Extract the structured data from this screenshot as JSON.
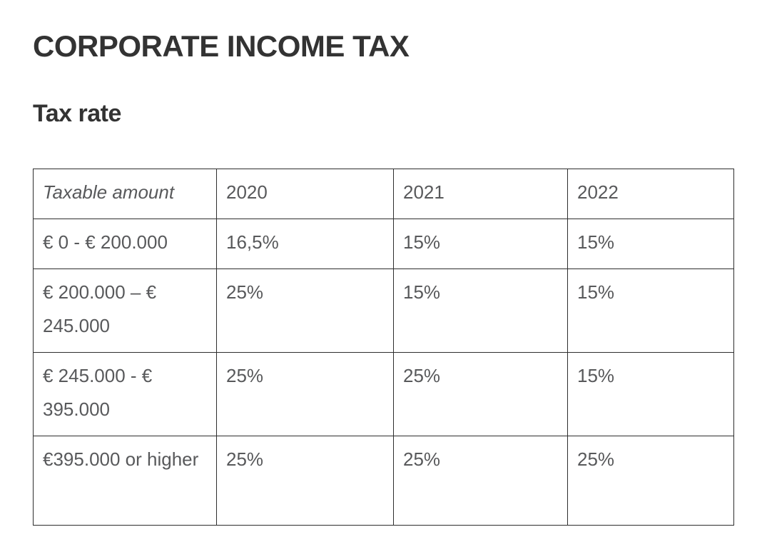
{
  "page": {
    "title": "CORPORATE INCOME TAX",
    "subtitle": "Tax rate"
  },
  "table": {
    "columns": [
      "Taxable amount",
      "2020",
      "2021",
      "2022"
    ],
    "rows": [
      {
        "label": "€ 0 - € 200.000",
        "values": [
          "16,5%",
          "15%",
          "15%"
        ]
      },
      {
        "label": "€ 200.000 – € 245.000",
        "values": [
          "25%",
          "15%",
          "15%"
        ]
      },
      {
        "label": "€ 245.000 - € 395.000",
        "values": [
          "25%",
          "25%",
          "15%"
        ]
      },
      {
        "label": "€395.000 or higher",
        "values": [
          "25%",
          "25%",
          "25%"
        ]
      }
    ]
  },
  "colors": {
    "heading": "#333333",
    "table_text": "#58595b",
    "border": "#2e2e2e",
    "background": "#ffffff"
  }
}
